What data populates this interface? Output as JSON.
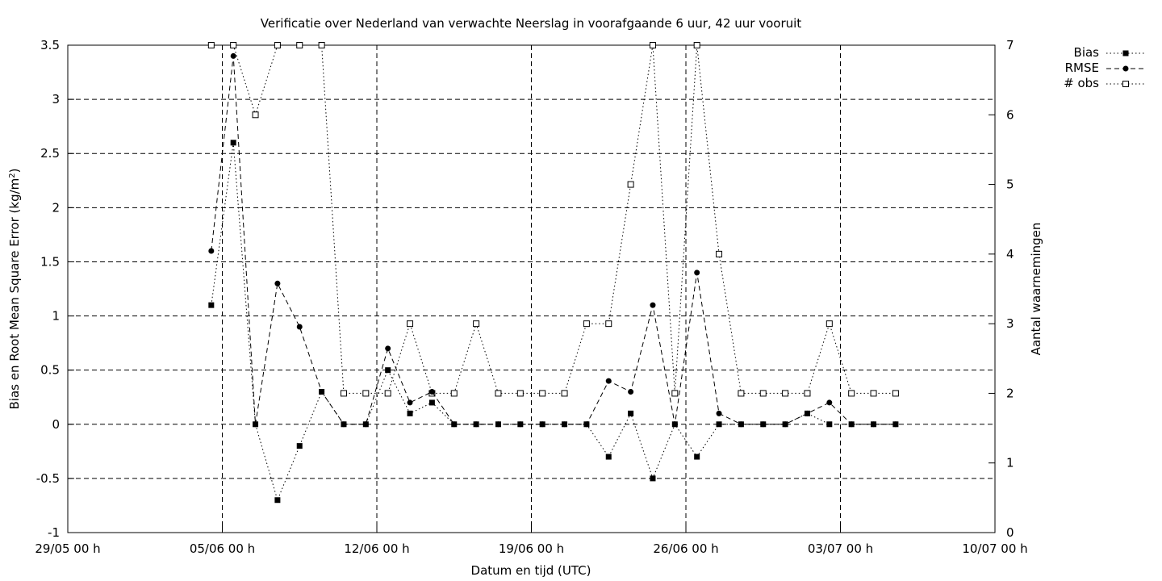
{
  "chart_data": {
    "type": "line",
    "title": "Verificatie over Nederland van verwachte Neerslag in voorafgaande 6 uur, 42 uur vooruit",
    "xlabel": "Datum en tijd (UTC)",
    "ylabel": "Bias en Root Mean Square Error (kg/m²)",
    "ylabel_main": "Bias en Root Mean Square Error (kg/m",
    "ylabel_sup": "2",
    "ylabel_end": ")",
    "y2label": "Aantal waarnemingen",
    "xlim": [
      "2025-05-29",
      "2025-07-10"
    ],
    "ylim": [
      -1,
      3.5
    ],
    "y2lim": [
      0,
      7
    ],
    "grid": true,
    "legend_position": "top-right outside",
    "x_ticks": [
      "2025-05-29",
      "2025-06-05",
      "2025-06-12",
      "2025-06-19",
      "2025-06-26",
      "2025-07-03",
      "2025-07-10"
    ],
    "x_tick_labels": [
      "29/05 00 h",
      "05/06 00 h",
      "12/06 00 h",
      "19/06 00 h",
      "26/06 00 h",
      "03/07 00 h",
      "10/07 00 h"
    ],
    "y_ticks": [
      -1,
      -0.5,
      0,
      0.5,
      1,
      1.5,
      2,
      2.5,
      3,
      3.5
    ],
    "y_tick_labels": [
      "-1",
      "-0.5",
      "0",
      "0.5",
      "1",
      "1.5",
      "2",
      "2.5",
      "3",
      "3.5"
    ],
    "y2_ticks": [
      0,
      1,
      2,
      3,
      4,
      5,
      6,
      7
    ],
    "y2_tick_labels": [
      "0",
      "1",
      "2",
      "3",
      "4",
      "5",
      "6",
      "7"
    ],
    "x": [
      "2025-06-04 12:00",
      "2025-06-05 12:00",
      "2025-06-06 12:00",
      "2025-06-07 12:00",
      "2025-06-08 12:00",
      "2025-06-09 12:00",
      "2025-06-10 12:00",
      "2025-06-11 12:00",
      "2025-06-12 12:00",
      "2025-06-13 12:00",
      "2025-06-14 12:00",
      "2025-06-15 12:00",
      "2025-06-16 12:00",
      "2025-06-17 12:00",
      "2025-06-18 12:00",
      "2025-06-19 12:00",
      "2025-06-20 12:00",
      "2025-06-21 12:00",
      "2025-06-22 12:00",
      "2025-06-23 12:00",
      "2025-06-24 12:00",
      "2025-06-25 12:00",
      "2025-06-26 12:00",
      "2025-06-27 12:00",
      "2025-06-28 12:00",
      "2025-06-29 12:00",
      "2025-06-30 12:00",
      "2025-07-01 12:00",
      "2025-07-02 12:00",
      "2025-07-03 12:00",
      "2025-07-04 12:00",
      "2025-07-05 12:00"
    ],
    "series": [
      {
        "name": "Bias",
        "axis": "y",
        "style": "dotted",
        "marker": "filled-square",
        "values": [
          1.1,
          2.6,
          0,
          -0.7,
          -0.2,
          0.3,
          0,
          0,
          0.5,
          0.1,
          0.2,
          0,
          0,
          0,
          0,
          0,
          0,
          0,
          -0.3,
          0.1,
          -0.5,
          0,
          -0.3,
          0,
          0,
          0,
          0,
          0.1,
          0,
          0,
          0,
          0
        ]
      },
      {
        "name": "RMSE",
        "axis": "y",
        "style": "dashed",
        "marker": "filled-circle",
        "values": [
          1.6,
          3.4,
          0,
          1.3,
          0.9,
          0.3,
          0,
          0,
          0.7,
          0.2,
          0.3,
          0,
          0,
          0,
          0,
          0,
          0,
          0,
          0.4,
          0.3,
          1.1,
          0,
          1.4,
          0.1,
          0,
          0,
          0,
          0.1,
          0.2,
          0,
          0,
          0
        ]
      },
      {
        "name": "# obs",
        "axis": "y2",
        "style": "dotted",
        "marker": "open-square",
        "values": [
          7,
          7,
          6,
          7,
          7,
          7,
          2,
          2,
          2,
          3,
          2,
          2,
          3,
          2,
          2,
          2,
          2,
          3,
          3,
          5,
          7,
          2,
          7,
          4,
          2,
          2,
          2,
          2,
          3,
          2,
          2,
          2
        ]
      }
    ]
  }
}
